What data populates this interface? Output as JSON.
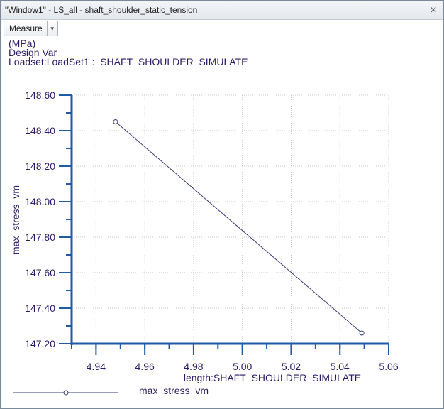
{
  "window": {
    "title": "\"Window1\" - LS_all - shaft_shoulder_static_tension",
    "close_glyph": "⨯"
  },
  "toolbar": {
    "measure_label": "Measure",
    "measure_arrow": "▼"
  },
  "header": {
    "units": "(MPa)",
    "design_var": "Design Var",
    "loadset": "Loadset:LoadSet1 :  SHAFT_SHOULDER_SIMULATE"
  },
  "colors": {
    "axis": "#1f5aa6",
    "text": "#2d1a66",
    "line": "#3a3a78",
    "grid": "#c8c8c8"
  },
  "chart_data": {
    "type": "line",
    "title": "",
    "xlabel": "length:SHAFT_SHOULDER_SIMULATE",
    "ylabel": "max_stress_vm",
    "xlim": [
      4.93,
      5.06
    ],
    "ylim": [
      147.2,
      148.6
    ],
    "x_ticks": [
      "4.94",
      "4.96",
      "4.98",
      "5.00",
      "5.02",
      "5.04",
      "5.06"
    ],
    "y_ticks": [
      "147.20",
      "147.40",
      "147.60",
      "147.80",
      "148.00",
      "148.20",
      "148.40",
      "148.60"
    ],
    "grid": true,
    "legend_position": "bottom-left",
    "series": [
      {
        "name": "max_stress_vm",
        "x": [
          4.948,
          5.049
        ],
        "y": [
          148.45,
          147.26
        ],
        "marker": "open-circle"
      }
    ]
  }
}
